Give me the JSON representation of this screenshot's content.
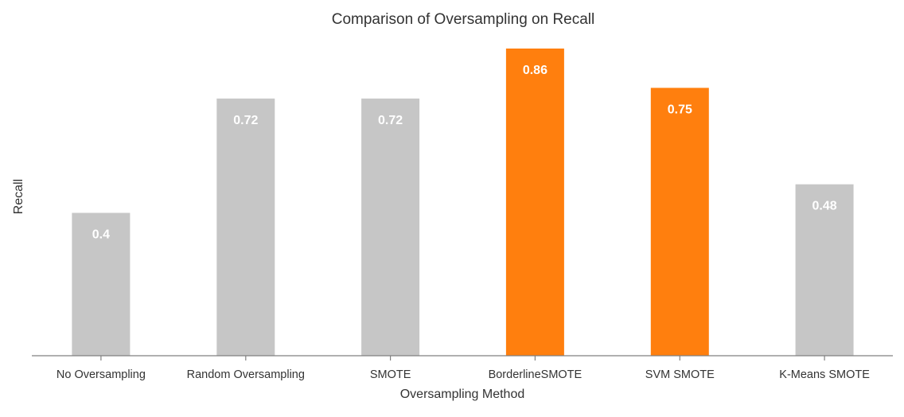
{
  "chart_data": {
    "type": "bar",
    "title": "Comparison of Oversampling on Recall",
    "xlabel": "Oversampling Method",
    "ylabel": "Recall",
    "categories": [
      "No Oversampling",
      "Random Oversampling",
      "SMOTE",
      "BorderlineSMOTE",
      "SVM SMOTE",
      "K-Means SMOTE"
    ],
    "values": [
      0.4,
      0.72,
      0.72,
      0.86,
      0.75,
      0.48
    ],
    "value_labels": [
      "0.4",
      "0.72",
      "0.72",
      "0.86",
      "0.75",
      "0.48"
    ],
    "highlighted": [
      false,
      false,
      false,
      true,
      true,
      false
    ],
    "ylim": [
      0,
      0.86
    ],
    "grid": false,
    "legend": "none",
    "colors": {
      "default_bar": "#c6c6c6",
      "highlight_bar": "#ff7f0e",
      "value_label": "#ffffff",
      "axis": "#808080",
      "text": "#333333"
    }
  }
}
